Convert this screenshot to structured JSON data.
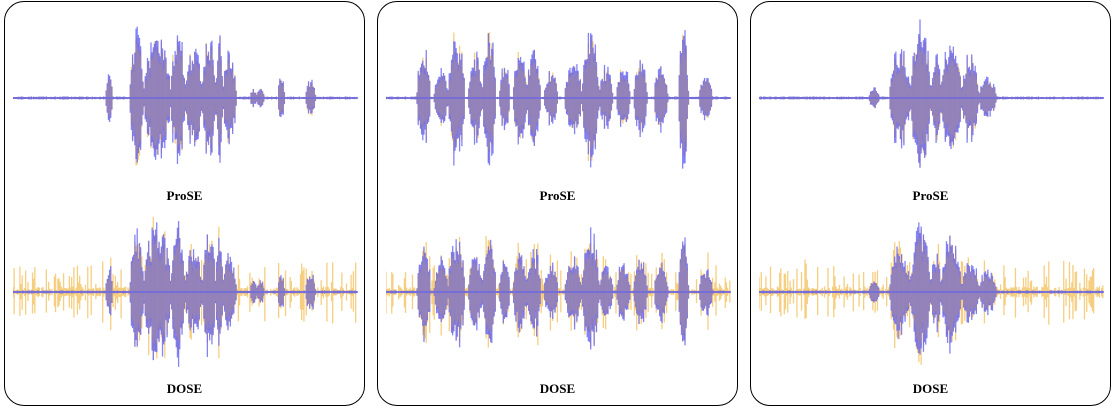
{
  "colors": {
    "clean_wave": "#5a5af5",
    "enhanced_wave": "#f5c56a",
    "overlap": "#a08aa6",
    "border": "#000000"
  },
  "chart_data": [
    {
      "type": "area",
      "grid": false,
      "legend": "none",
      "panels": [
        {
          "caption": "ProSE",
          "noise": 0.03,
          "segments": [
            [
              0.27,
              0.29,
              0.34
            ],
            [
              0.34,
              0.38,
              0.95
            ],
            [
              0.38,
              0.46,
              0.82
            ],
            [
              0.46,
              0.5,
              1.0
            ],
            [
              0.5,
              0.55,
              0.72
            ],
            [
              0.55,
              0.59,
              0.88
            ],
            [
              0.59,
              0.61,
              0.8
            ],
            [
              0.61,
              0.65,
              0.6
            ],
            [
              0.69,
              0.71,
              0.12
            ],
            [
              0.71,
              0.73,
              0.14
            ],
            [
              0.77,
              0.79,
              0.3
            ],
            [
              0.85,
              0.88,
              0.22
            ]
          ]
        },
        {
          "caption": "DOSE",
          "noise": 0.38,
          "segments": [
            [
              0.27,
              0.29,
              0.36
            ],
            [
              0.34,
              0.38,
              0.8
            ],
            [
              0.38,
              0.46,
              0.88
            ],
            [
              0.46,
              0.5,
              0.95
            ],
            [
              0.5,
              0.55,
              0.62
            ],
            [
              0.55,
              0.59,
              0.85
            ],
            [
              0.59,
              0.61,
              0.78
            ],
            [
              0.61,
              0.65,
              0.55
            ],
            [
              0.69,
              0.71,
              0.14
            ],
            [
              0.71,
              0.73,
              0.14
            ],
            [
              0.77,
              0.79,
              0.24
            ],
            [
              0.85,
              0.88,
              0.26
            ]
          ]
        }
      ]
    },
    {
      "type": "area",
      "grid": false,
      "legend": "none",
      "panels": [
        {
          "caption": "ProSE",
          "noise": 0.03,
          "segments": [
            [
              0.09,
              0.13,
              0.7
            ],
            [
              0.14,
              0.18,
              0.45
            ],
            [
              0.18,
              0.23,
              0.85
            ],
            [
              0.24,
              0.28,
              0.65
            ],
            [
              0.28,
              0.32,
              0.9
            ],
            [
              0.33,
              0.36,
              0.5
            ],
            [
              0.37,
              0.41,
              0.62
            ],
            [
              0.41,
              0.45,
              0.72
            ],
            [
              0.46,
              0.5,
              0.4
            ],
            [
              0.52,
              0.57,
              0.5
            ],
            [
              0.57,
              0.62,
              0.9
            ],
            [
              0.62,
              0.66,
              0.4
            ],
            [
              0.67,
              0.71,
              0.45
            ],
            [
              0.72,
              0.76,
              0.5
            ],
            [
              0.78,
              0.82,
              0.45
            ],
            [
              0.85,
              0.88,
              0.88
            ],
            [
              0.91,
              0.95,
              0.28
            ]
          ]
        },
        {
          "caption": "DOSE",
          "noise": 0.33,
          "segments": [
            [
              0.09,
              0.13,
              0.66
            ],
            [
              0.14,
              0.18,
              0.42
            ],
            [
              0.18,
              0.23,
              0.8
            ],
            [
              0.24,
              0.28,
              0.58
            ],
            [
              0.28,
              0.32,
              0.74
            ],
            [
              0.33,
              0.36,
              0.48
            ],
            [
              0.37,
              0.41,
              0.55
            ],
            [
              0.41,
              0.45,
              0.6
            ],
            [
              0.46,
              0.5,
              0.38
            ],
            [
              0.52,
              0.57,
              0.45
            ],
            [
              0.57,
              0.62,
              0.82
            ],
            [
              0.62,
              0.66,
              0.36
            ],
            [
              0.67,
              0.71,
              0.42
            ],
            [
              0.72,
              0.76,
              0.44
            ],
            [
              0.78,
              0.82,
              0.42
            ],
            [
              0.85,
              0.88,
              0.78
            ],
            [
              0.91,
              0.95,
              0.3
            ]
          ]
        }
      ]
    },
    {
      "type": "area",
      "grid": false,
      "legend": "none",
      "panels": [
        {
          "caption": "ProSE",
          "noise": 0.03,
          "segments": [
            [
              0.32,
              0.35,
              0.12
            ],
            [
              0.38,
              0.44,
              0.7
            ],
            [
              0.44,
              0.5,
              1.0
            ],
            [
              0.5,
              0.53,
              0.6
            ],
            [
              0.53,
              0.59,
              0.82
            ],
            [
              0.59,
              0.64,
              0.6
            ],
            [
              0.64,
              0.69,
              0.28
            ]
          ]
        },
        {
          "caption": "DOSE",
          "noise": 0.4,
          "segments": [
            [
              0.32,
              0.35,
              0.16
            ],
            [
              0.38,
              0.44,
              0.6
            ],
            [
              0.44,
              0.5,
              0.92
            ],
            [
              0.5,
              0.53,
              0.55
            ],
            [
              0.53,
              0.59,
              0.75
            ],
            [
              0.59,
              0.64,
              0.5
            ],
            [
              0.64,
              0.69,
              0.3
            ]
          ]
        }
      ]
    }
  ]
}
